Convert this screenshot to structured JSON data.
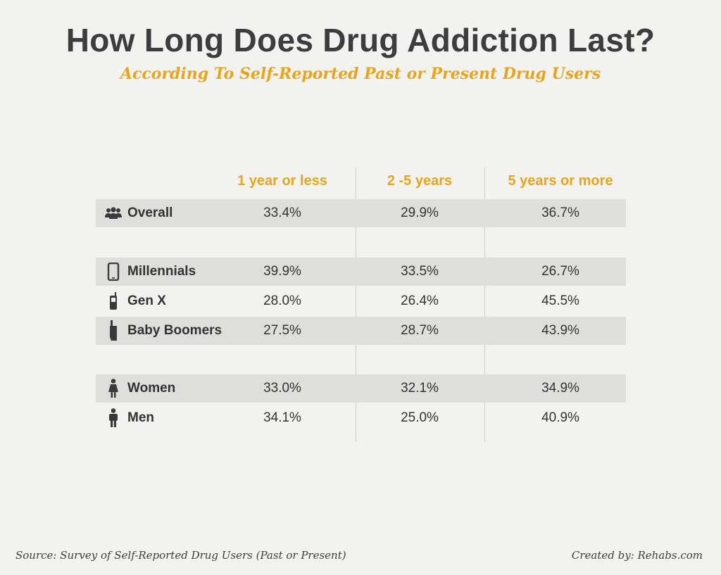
{
  "chart_data": {
    "type": "table",
    "title": "How Long Does Drug Addiction Last?",
    "subtitle": "According To Self-Reported Past or Present Drug Users",
    "columns": [
      "1 year or less",
      "2 -5 years",
      "5 years or more"
    ],
    "rows": [
      {
        "label": "Overall",
        "icon": "group-icon",
        "values": [
          "33.4%",
          "29.9%",
          "36.7%"
        ]
      },
      {
        "label": "Millennials",
        "icon": "smartphone-icon",
        "values": [
          "39.9%",
          "33.5%",
          "26.7%"
        ]
      },
      {
        "label": "Gen X",
        "icon": "cellphone-icon",
        "values": [
          "28.0%",
          "26.4%",
          "45.5%"
        ]
      },
      {
        "label": "Baby Boomers",
        "icon": "brick-phone-icon",
        "values": [
          "27.5%",
          "28.7%",
          "43.9%"
        ]
      },
      {
        "label": "Women",
        "icon": "woman-icon",
        "values": [
          "33.0%",
          "32.1%",
          "34.9%"
        ]
      },
      {
        "label": "Men",
        "icon": "man-icon",
        "values": [
          "34.1%",
          "25.0%",
          "40.9%"
        ]
      }
    ],
    "source": "Source: Survey of Self-Reported Drug Users (Past or Present)",
    "credit": "Created by: Rehabs.com"
  },
  "colors": {
    "accent": "#e8a51c",
    "text": "#3d3d3d",
    "row_shade": "#dededc",
    "background": "#f2f2f0"
  }
}
